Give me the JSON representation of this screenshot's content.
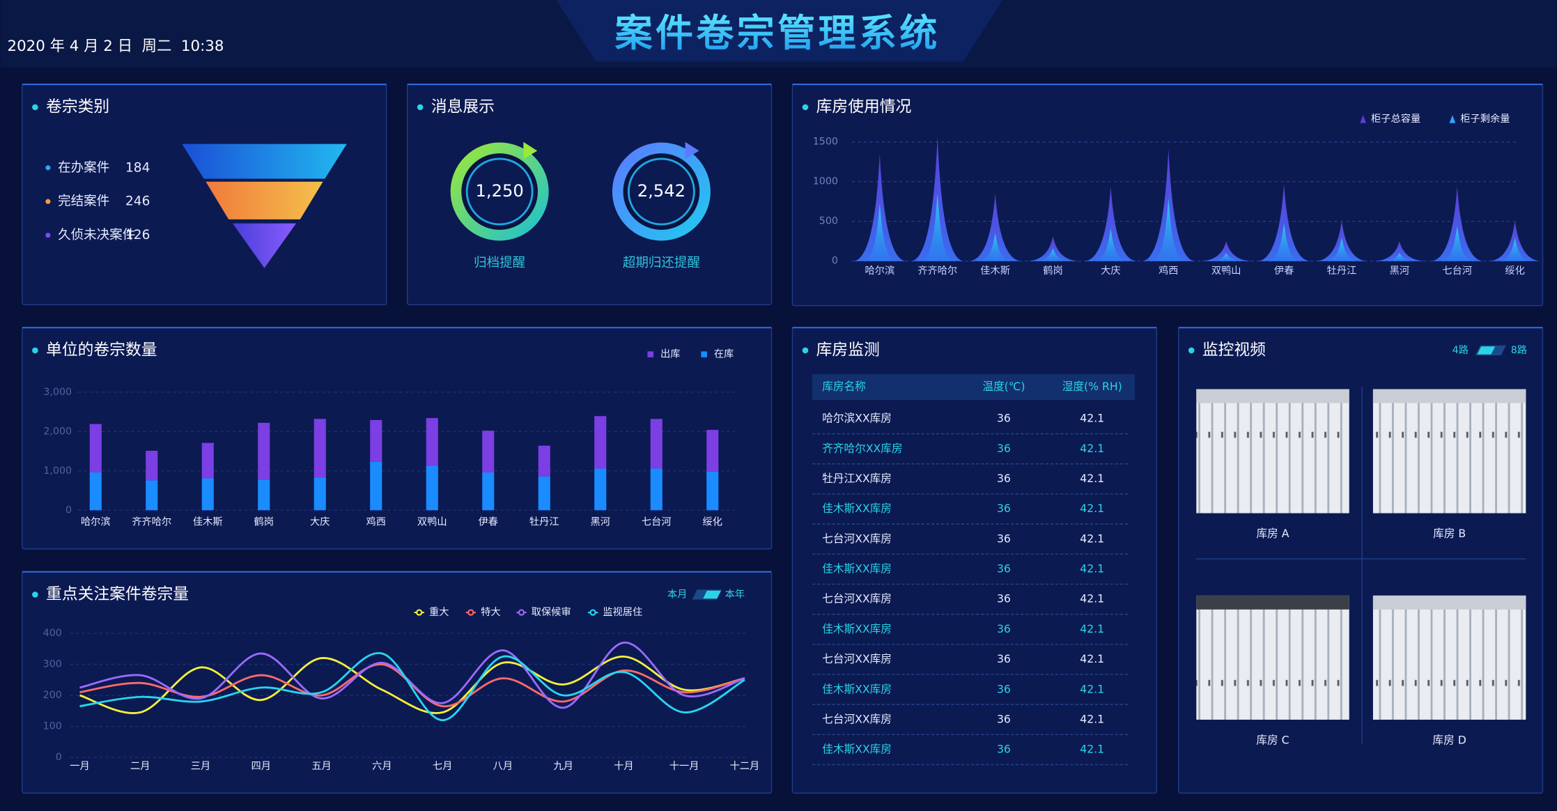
{
  "header": {
    "datetime": "2020 年 4 月 2 日  周二  10:38",
    "title": "案件卷宗管理系统"
  },
  "case_types": {
    "title": "卷宗类别",
    "items": [
      {
        "label": "在办案件",
        "value": 184,
        "color": "#2fa8ff"
      },
      {
        "label": "完结案件",
        "value": 246,
        "color": "#ff9a3c"
      },
      {
        "label": "久侦未决案件",
        "value": 126,
        "color": "#7a4dff"
      }
    ]
  },
  "messages": {
    "title": "消息展示",
    "items": [
      {
        "value": "1,250",
        "label": "归档提醒"
      },
      {
        "value": "2,542",
        "label": "超期归还提醒"
      }
    ]
  },
  "warehouse_usage": {
    "title": "库房使用情况",
    "type": "spike",
    "categories": [
      "哈尔滨",
      "齐齐哈尔",
      "佳木斯",
      "鹤岗",
      "大庆",
      "鸡西",
      "双鸭山",
      "伊春",
      "牡丹江",
      "黑河",
      "七台河",
      "绥化"
    ],
    "series": [
      {
        "name": "柜子总容量",
        "color": "#5b3fd8",
        "values": [
          1350,
          1560,
          850,
          310,
          940,
          1410,
          250,
          975,
          510,
          250,
          940,
          510
        ]
      },
      {
        "name": "柜子剩余量",
        "color": "#2fd0f0",
        "values": [
          725,
          850,
          350,
          160,
          410,
          790,
          100,
          475,
          290,
          100,
          440,
          290
        ]
      }
    ],
    "ylim": [
      0,
      1500
    ],
    "yticks": [
      0,
      500,
      1000,
      1500
    ],
    "grid": true
  },
  "unit_counts": {
    "title": "单位的卷宗数量",
    "type": "stacked-bar",
    "categories": [
      "哈尔滨",
      "齐齐哈尔",
      "佳木斯",
      "鹤岗",
      "大庆",
      "鸡西",
      "双鸭山",
      "伊春",
      "牡丹江",
      "黑河",
      "七台河",
      "绥化"
    ],
    "series": [
      {
        "name": "出库",
        "color": "#7b3fe4",
        "values": [
          1230,
          750,
          900,
          1440,
          1490,
          1060,
          1210,
          1060,
          780,
          1330,
          1260,
          1060
        ]
      },
      {
        "name": "在库",
        "color": "#1a8cff",
        "values": [
          960,
          760,
          810,
          780,
          830,
          1230,
          1130,
          960,
          860,
          1060,
          1060,
          980
        ]
      }
    ],
    "ylim": [
      0,
      3000
    ],
    "yticks": [
      0,
      {
        "value": 1000,
        "label": "1,000"
      },
      {
        "value": 2000,
        "label": "2,000"
      },
      {
        "value": 3000,
        "label": "3,000"
      }
    ],
    "grid": true
  },
  "key_cases": {
    "title": "重点关注案件卷宗量",
    "type": "line",
    "toggle": [
      "本月",
      "本年"
    ],
    "categories": [
      "一月",
      "二月",
      "三月",
      "四月",
      "五月",
      "六月",
      "七月",
      "八月",
      "九月",
      "十月",
      "十一月",
      "十二月"
    ],
    "series": [
      {
        "name": "重大",
        "color": "#f5f03a",
        "values": [
          200,
          145,
          290,
          185,
          320,
          218,
          145,
          305,
          235,
          325,
          218,
          255
        ]
      },
      {
        "name": "特大",
        "color": "#ff6b6b",
        "values": [
          210,
          240,
          195,
          265,
          200,
          300,
          165,
          255,
          180,
          280,
          210,
          255
        ]
      },
      {
        "name": "取保候审",
        "color": "#9a6bff",
        "values": [
          225,
          265,
          190,
          335,
          190,
          305,
          175,
          345,
          160,
          370,
          200,
          255
        ]
      },
      {
        "name": "监视居住",
        "color": "#27d6f0",
        "values": [
          165,
          195,
          180,
          225,
          210,
          335,
          120,
          325,
          200,
          275,
          145,
          250
        ]
      }
    ],
    "ylim": [
      0,
      400
    ],
    "yticks": [
      0,
      100,
      200,
      300,
      400
    ],
    "grid": true
  },
  "monitoring": {
    "title": "库房监测",
    "columns": [
      "库房名称",
      "温度(℃)",
      "湿度(% RH)"
    ],
    "rows": [
      [
        "哈尔滨XX库房",
        36,
        42.1
      ],
      [
        "齐齐哈尔XX库房",
        36,
        42.1
      ],
      [
        "牡丹江XX库房",
        36,
        42.1
      ],
      [
        "佳木斯XX库房",
        36,
        42.1
      ],
      [
        "七台河XX库房",
        36,
        42.1
      ],
      [
        "佳木斯XX库房",
        36,
        42.1
      ],
      [
        "七台河XX库房",
        36,
        42.1
      ],
      [
        "佳木斯XX库房",
        36,
        42.1
      ],
      [
        "七台河XX库房",
        36,
        42.1
      ],
      [
        "佳木斯XX库房",
        36,
        42.1
      ],
      [
        "七台河XX库房",
        36,
        42.1
      ],
      [
        "佳木斯XX库房",
        36,
        42.1
      ]
    ]
  },
  "video": {
    "title": "监控视频",
    "toggle": [
      "4路",
      "8路"
    ],
    "cameras": [
      "库房 A",
      "库房 B",
      "库房 C",
      "库房 D"
    ]
  }
}
